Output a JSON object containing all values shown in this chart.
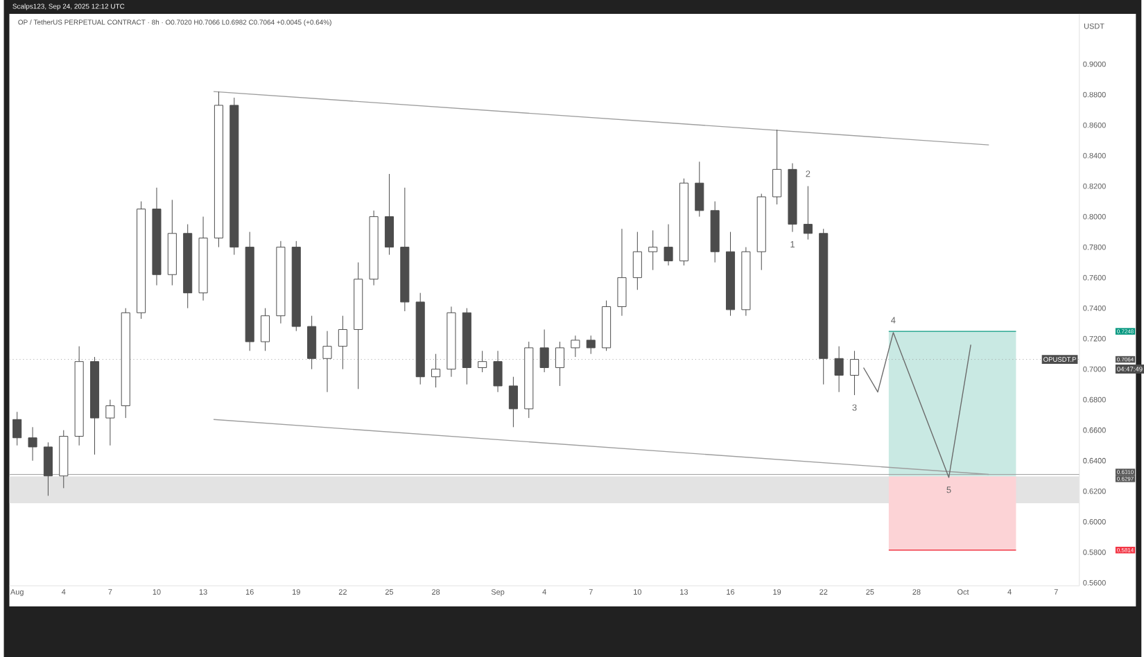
{
  "chart_data": {
    "type": "candlestick",
    "title": "OP / TetherUS PERPETUAL CONTRACT · 8h · O0.7020 H0.7066 L0.6982 C0.7064 +0.0045 (+0.64%)",
    "ylabel": "USDT",
    "x": [
      "2025-08-01",
      "2025-08-02",
      "2025-08-03",
      "2025-08-04",
      "2025-08-05",
      "2025-08-06",
      "2025-08-07",
      "2025-08-08",
      "2025-08-09",
      "2025-08-10",
      "2025-08-11",
      "2025-08-12",
      "2025-08-13",
      "2025-08-14",
      "2025-08-15",
      "2025-08-16",
      "2025-08-17",
      "2025-08-18",
      "2025-08-19",
      "2025-08-20",
      "2025-08-21",
      "2025-08-22",
      "2025-08-23",
      "2025-08-24",
      "2025-08-25",
      "2025-08-26",
      "2025-08-27",
      "2025-08-28",
      "2025-08-29",
      "2025-08-30",
      "2025-08-31",
      "2025-09-01",
      "2025-09-02",
      "2025-09-03",
      "2025-09-04",
      "2025-09-05",
      "2025-09-06",
      "2025-09-07",
      "2025-09-08",
      "2025-09-09",
      "2025-09-10",
      "2025-09-11",
      "2025-09-12",
      "2025-09-13",
      "2025-09-14",
      "2025-09-15",
      "2025-09-16",
      "2025-09-17",
      "2025-09-18",
      "2025-09-19",
      "2025-09-20",
      "2025-09-21",
      "2025-09-22",
      "2025-09-23",
      "2025-09-24"
    ],
    "ohlc": [
      [
        0.667,
        0.672,
        0.65,
        0.655
      ],
      [
        0.655,
        0.662,
        0.64,
        0.649
      ],
      [
        0.649,
        0.652,
        0.617,
        0.63
      ],
      [
        0.63,
        0.66,
        0.622,
        0.656
      ],
      [
        0.656,
        0.715,
        0.65,
        0.705
      ],
      [
        0.705,
        0.708,
        0.644,
        0.668
      ],
      [
        0.668,
        0.68,
        0.65,
        0.676
      ],
      [
        0.676,
        0.74,
        0.668,
        0.737
      ],
      [
        0.737,
        0.81,
        0.733,
        0.805
      ],
      [
        0.805,
        0.819,
        0.755,
        0.762
      ],
      [
        0.762,
        0.811,
        0.755,
        0.789
      ],
      [
        0.789,
        0.795,
        0.74,
        0.75
      ],
      [
        0.75,
        0.8,
        0.745,
        0.786
      ],
      [
        0.786,
        0.882,
        0.78,
        0.873
      ],
      [
        0.873,
        0.878,
        0.775,
        0.78
      ],
      [
        0.78,
        0.79,
        0.712,
        0.718
      ],
      [
        0.718,
        0.74,
        0.712,
        0.735
      ],
      [
        0.735,
        0.784,
        0.73,
        0.78
      ],
      [
        0.78,
        0.784,
        0.725,
        0.728
      ],
      [
        0.728,
        0.735,
        0.7,
        0.707
      ],
      [
        0.707,
        0.725,
        0.685,
        0.715
      ],
      [
        0.715,
        0.735,
        0.7,
        0.726
      ],
      [
        0.726,
        0.77,
        0.687,
        0.759
      ],
      [
        0.759,
        0.804,
        0.755,
        0.8
      ],
      [
        0.8,
        0.828,
        0.775,
        0.78
      ],
      [
        0.78,
        0.819,
        0.738,
        0.744
      ],
      [
        0.744,
        0.75,
        0.69,
        0.695
      ],
      [
        0.695,
        0.71,
        0.688,
        0.7
      ],
      [
        0.7,
        0.741,
        0.695,
        0.737
      ],
      [
        0.737,
        0.74,
        0.69,
        0.701
      ],
      [
        0.701,
        0.712,
        0.698,
        0.705
      ],
      [
        0.705,
        0.712,
        0.685,
        0.689
      ],
      [
        0.689,
        0.695,
        0.662,
        0.674
      ],
      [
        0.674,
        0.718,
        0.668,
        0.714
      ],
      [
        0.714,
        0.726,
        0.698,
        0.701
      ],
      [
        0.701,
        0.718,
        0.689,
        0.714
      ],
      [
        0.714,
        0.722,
        0.708,
        0.719
      ],
      [
        0.719,
        0.722,
        0.71,
        0.714
      ],
      [
        0.714,
        0.745,
        0.712,
        0.741
      ],
      [
        0.741,
        0.792,
        0.735,
        0.76
      ],
      [
        0.76,
        0.79,
        0.752,
        0.777
      ],
      [
        0.777,
        0.791,
        0.765,
        0.78
      ],
      [
        0.78,
        0.795,
        0.768,
        0.771
      ],
      [
        0.771,
        0.825,
        0.768,
        0.822
      ],
      [
        0.822,
        0.836,
        0.8,
        0.804
      ],
      [
        0.804,
        0.81,
        0.77,
        0.777
      ],
      [
        0.777,
        0.79,
        0.735,
        0.739
      ],
      [
        0.739,
        0.78,
        0.735,
        0.777
      ],
      [
        0.777,
        0.815,
        0.765,
        0.813
      ],
      [
        0.813,
        0.857,
        0.808,
        0.831
      ],
      [
        0.831,
        0.835,
        0.79,
        0.795
      ],
      [
        0.795,
        0.82,
        0.785,
        0.789
      ],
      [
        0.789,
        0.792,
        0.69,
        0.707
      ],
      [
        0.707,
        0.715,
        0.685,
        0.696
      ],
      [
        0.696,
        0.712,
        0.683,
        0.7064
      ]
    ],
    "series": [
      {
        "type": "line",
        "x": [
          "2025-08-13T16:00",
          "2025-10-02T16:00"
        ],
        "values": [
          0.882,
          0.847
        ],
        "color": "#9e9e9e"
      },
      {
        "type": "line",
        "x": [
          "2025-08-13T16:00",
          "2025-10-02T16:00"
        ],
        "values": [
          0.667,
          0.631
        ],
        "color": "#9e9e9e"
      },
      {
        "type": "line",
        "x": [
          "2025-09-24T14:00",
          "2025-09-25T12:00",
          "2025-09-26T12:00",
          "2025-09-30T02:00",
          "2025-10-01T12:00"
        ],
        "values": [
          0.701,
          0.685,
          0.724,
          0.629,
          0.716
        ],
        "color": "#6b6b6b"
      },
      {
        "type": "line",
        "x": [
          "2025-09-26T05:00",
          "2025-10-04T10:00"
        ],
        "values": [
          0.7248,
          0.7248
        ],
        "lower": [
          0.6297,
          0.6297
        ],
        "upper": [
          0.7248,
          0.7248
        ],
        "color": "#089981"
      },
      {
        "type": "line",
        "x": [
          "2025-09-26T05:00",
          "2025-10-04T10:00"
        ],
        "values": [
          0.5814,
          0.5814
        ],
        "lower": [
          0.5814,
          0.5814
        ],
        "upper": [
          0.6297,
          0.6297
        ],
        "color": "#f23645"
      }
    ],
    "bands": [
      {
        "axis": "y",
        "from": 0.612,
        "to": 0.6297,
        "color": "#e3e3e3"
      }
    ],
    "ref_lines": [
      {
        "axis": "y",
        "value": 0.631,
        "color": "#9e9e9e",
        "line_style": "solid"
      },
      {
        "axis": "y",
        "value": 0.7064,
        "label": "OPUSDT.P",
        "color": "#9e9e9e",
        "line_style": "dotted"
      }
    ],
    "annotations": [
      "Scalps123, Sep 24, 2025 12:12 UTC",
      "04:47:49",
      {
        "text": "1",
        "x": "2025-09-20",
        "y": 0.79
      },
      {
        "text": "2",
        "x": "2025-09-21",
        "y": 0.82
      },
      {
        "text": "3",
        "x": "2025-09-24",
        "y": 0.683
      },
      {
        "text": "4",
        "x": "2025-09-26T12:00",
        "y": 0.724
      },
      {
        "text": "5",
        "x": "2025-09-30T02:00",
        "y": 0.629
      }
    ],
    "y2lim": [
      0.558,
      0.933
    ],
    "y2ticks": [
      0.7248,
      0.7064,
      {
        "value": 0.631,
        "label": "0.6310"
      },
      0.6297,
      0.5814
    ],
    "xlim": [
      "2025-07-31T12:00",
      "2025-10-08T12:00"
    ],
    "ylim": [
      0.558,
      0.933
    ],
    "xticks": [
      {
        "value": "2025-08-01",
        "label": "Aug"
      },
      {
        "value": "2025-08-04",
        "label": "4"
      },
      {
        "value": "2025-08-07",
        "label": "7"
      },
      {
        "value": "2025-08-10",
        "label": "10"
      },
      {
        "value": "2025-08-13",
        "label": "13"
      },
      {
        "value": "2025-08-16",
        "label": "16"
      },
      {
        "value": "2025-08-19",
        "label": "19"
      },
      {
        "value": "2025-08-22",
        "label": "22"
      },
      {
        "value": "2025-08-25",
        "label": "25"
      },
      {
        "value": "2025-08-28",
        "label": "28"
      },
      {
        "value": "2025-09-01",
        "label": "Sep"
      },
      {
        "value": "2025-09-04",
        "label": "4"
      },
      {
        "value": "2025-09-07",
        "label": "7"
      },
      {
        "value": "2025-09-10",
        "label": "10"
      },
      {
        "value": "2025-09-13",
        "label": "13"
      },
      {
        "value": "2025-09-16",
        "label": "16"
      },
      {
        "value": "2025-09-19",
        "label": "19"
      },
      {
        "value": "2025-09-22",
        "label": "22"
      },
      {
        "value": "2025-09-25",
        "label": "25"
      },
      {
        "value": "2025-09-28",
        "label": "28"
      },
      {
        "value": "2025-10-01",
        "label": "Oct"
      },
      {
        "value": "2025-10-04",
        "label": "4"
      },
      {
        "value": "2025-10-07",
        "label": "7"
      }
    ],
    "yticks": [
      {
        "value": 0.56,
        "label": "0.5600"
      },
      {
        "value": 0.58,
        "label": "0.5800"
      },
      {
        "value": 0.6,
        "label": "0.6000"
      },
      {
        "value": 0.62,
        "label": "0.6200"
      },
      {
        "value": 0.64,
        "label": "0.6400"
      },
      {
        "value": 0.66,
        "label": "0.6600"
      },
      {
        "value": 0.68,
        "label": "0.6800"
      },
      {
        "value": 0.7,
        "label": "0.7000"
      },
      {
        "value": 0.72,
        "label": "0.7200"
      },
      {
        "value": 0.74,
        "label": "0.7400"
      },
      {
        "value": 0.76,
        "label": "0.7600"
      },
      {
        "value": 0.78,
        "label": "0.7800"
      },
      {
        "value": 0.8,
        "label": "0.8000"
      },
      {
        "value": 0.82,
        "label": "0.8200"
      },
      {
        "value": 0.84,
        "label": "0.8400"
      },
      {
        "value": 0.86,
        "label": "0.8600"
      },
      {
        "value": 0.88,
        "label": "0.8800"
      },
      {
        "value": 0.9,
        "label": "0.9000"
      }
    ]
  }
}
